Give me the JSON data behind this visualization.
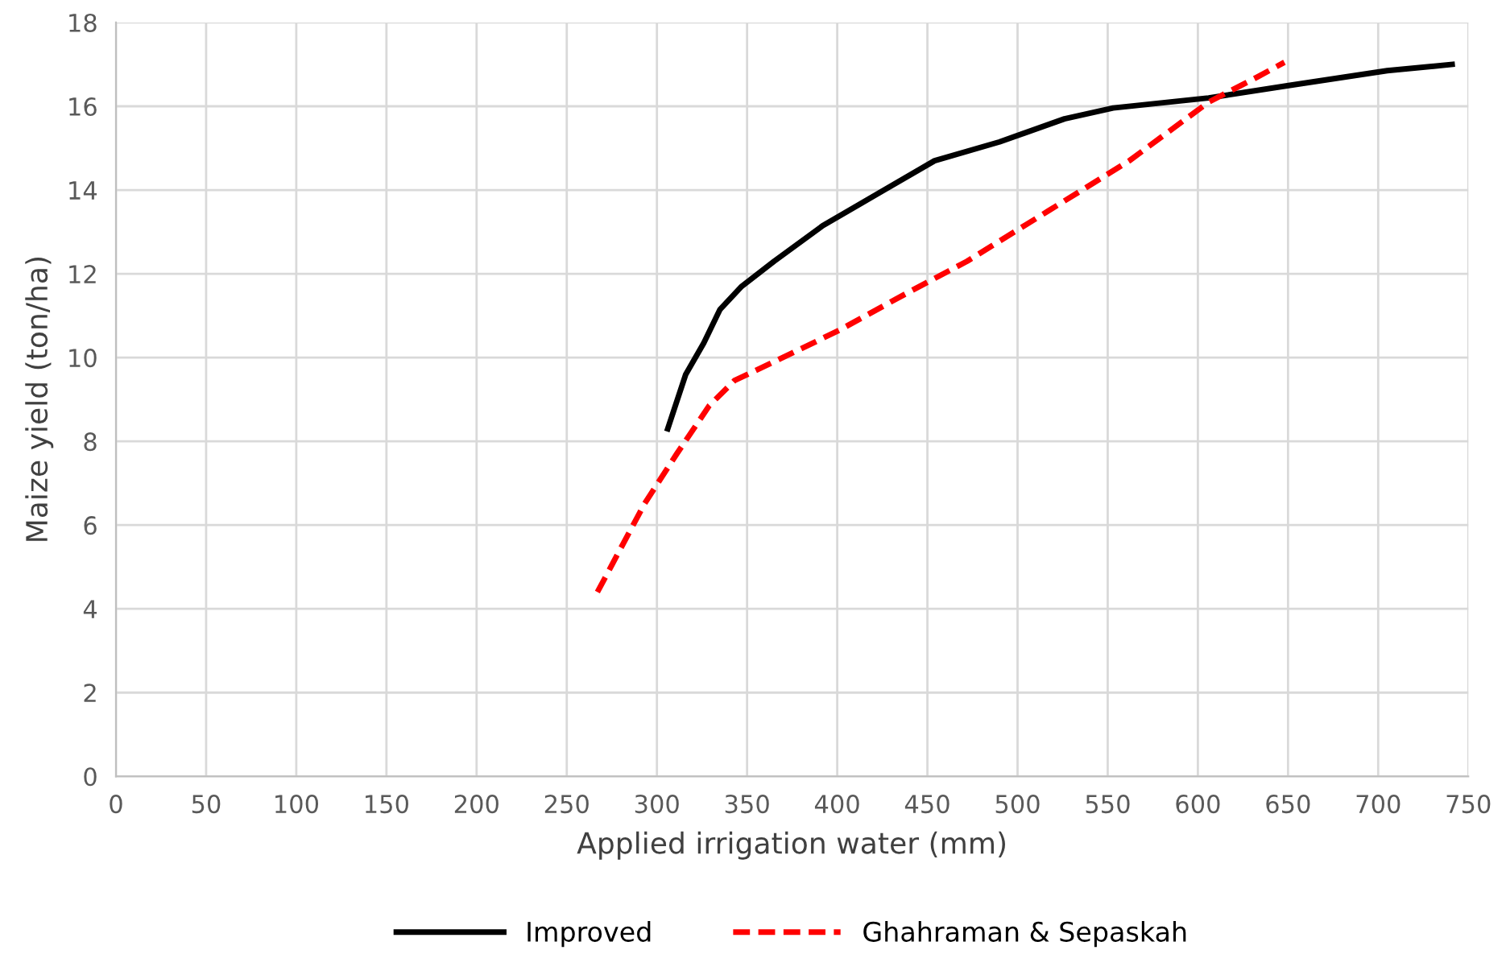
{
  "chart_data": {
    "type": "line",
    "xlabel": "Applied irrigation water (mm)",
    "ylabel": "Maize yield (ton/ha)",
    "xlim": [
      0,
      750
    ],
    "xticks": [
      0,
      50,
      100,
      150,
      200,
      250,
      300,
      350,
      400,
      450,
      500,
      550,
      600,
      650,
      700,
      750
    ],
    "ylim": [
      0,
      18
    ],
    "yticks": [
      0,
      2,
      4,
      6,
      8,
      10,
      12,
      14,
      16,
      18
    ],
    "grid": true,
    "legend": "bottom",
    "marker": "none",
    "series": [
      {
        "name": "Improved",
        "color": "#000000",
        "line_style": "solid",
        "x": [
          306,
          316,
          326,
          335,
          347,
          365,
          392,
          426,
          454,
          490,
          526,
          553,
          606,
          651,
          705,
          741
        ],
        "values": [
          8.3,
          9.6,
          10.35,
          11.15,
          11.7,
          12.3,
          13.15,
          14.0,
          14.7,
          15.15,
          15.7,
          15.96,
          16.2,
          16.5,
          16.85,
          17.0
        ]
      },
      {
        "name": "Ghahraman & Sepaskah",
        "color": "#ff0000",
        "line_style": "dashed",
        "x": [
          267,
          293,
          311,
          329,
          343,
          365,
          401,
          437,
          472,
          517,
          562,
          606,
          633,
          648
        ],
        "values": [
          4.4,
          6.5,
          7.7,
          8.85,
          9.45,
          9.9,
          10.65,
          11.5,
          12.3,
          13.5,
          14.7,
          16.1,
          16.7,
          17.05
        ]
      }
    ]
  }
}
